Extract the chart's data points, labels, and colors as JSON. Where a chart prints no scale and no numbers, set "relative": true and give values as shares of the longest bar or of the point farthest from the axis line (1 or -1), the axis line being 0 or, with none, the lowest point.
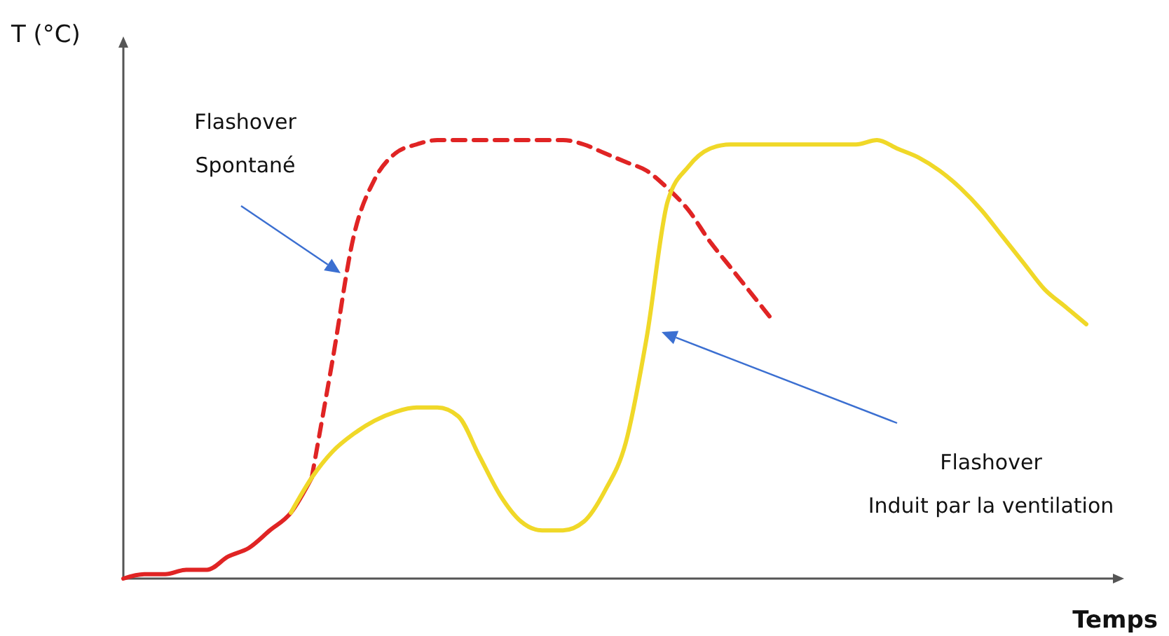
{
  "chart_data": {
    "type": "line",
    "relative": true,
    "ylabel": "T (°C)",
    "xlabel": "Temps",
    "categories": [
      null,
      null,
      null,
      null,
      null,
      null,
      null,
      null,
      null,
      null,
      null,
      null,
      null,
      null,
      null,
      null,
      null,
      null,
      null,
      null,
      null,
      null,
      null,
      null,
      null,
      null,
      null,
      null,
      null,
      null,
      null,
      null,
      null,
      null,
      null,
      null,
      null,
      null,
      null,
      null,
      null,
      null,
      null,
      null,
      null,
      null,
      null
    ],
    "series": [
      {
        "color": "#e02424",
        "line_style": "solid",
        "values": [
          0,
          0.01,
          0.01,
          0.02,
          0.02,
          0.05,
          0.07,
          0.11,
          0.15,
          0.23,
          null,
          null,
          null,
          null,
          null,
          null,
          null,
          null,
          null,
          null,
          null,
          null,
          null,
          null,
          null,
          null,
          null,
          null,
          null,
          null,
          null,
          null,
          null,
          null,
          null,
          null,
          null,
          null,
          null,
          null,
          null,
          null,
          null,
          null,
          null,
          null,
          null
        ]
      },
      {
        "color": "#e02424",
        "line_style": "dashed",
        "values": [
          null,
          null,
          null,
          null,
          null,
          null,
          null,
          null,
          null,
          0.23,
          0.5,
          0.78,
          0.91,
          0.97,
          0.99,
          1,
          1,
          1,
          1,
          1,
          1,
          1,
          0.99,
          0.97,
          0.95,
          0.93,
          0.89,
          0.84,
          0.77,
          0.71,
          0.65,
          0.59,
          null,
          null,
          null,
          null,
          null,
          null,
          null,
          null,
          null,
          null,
          null,
          null,
          null,
          null,
          null
        ]
      },
      {
        "color": "#f0d828",
        "line_style": "solid",
        "values": [
          null,
          null,
          null,
          null,
          null,
          null,
          null,
          null,
          0.15,
          0.23,
          0.29,
          0.33,
          0.36,
          0.38,
          0.39,
          0.39,
          0.37,
          0.28,
          0.19,
          0.13,
          0.11,
          0.11,
          0.13,
          0.2,
          0.31,
          0.55,
          0.86,
          0.94,
          0.98,
          0.99,
          0.99,
          0.99,
          0.99,
          0.99,
          0.99,
          0.99,
          1,
          0.98,
          0.96,
          0.93,
          0.89,
          0.84,
          0.78,
          0.72,
          0.66,
          0.62,
          0.58
        ]
      }
    ],
    "annotations": [
      "Flashover\nSpontané",
      "Flashover\nInduit par la ventilation"
    ]
  }
}
